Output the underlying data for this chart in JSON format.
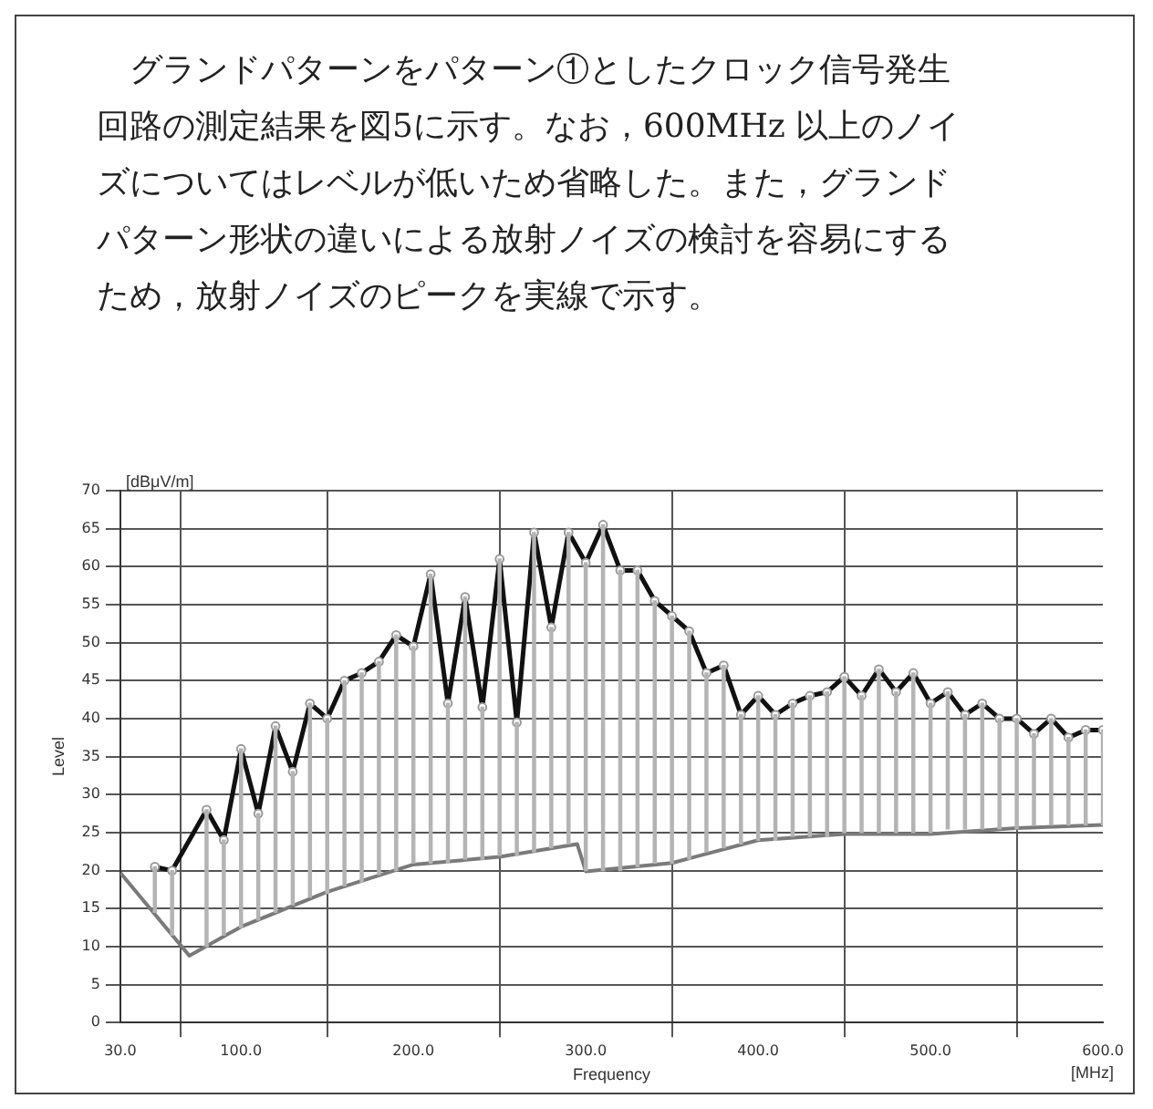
{
  "chart_data": {
    "type": "line",
    "xlabel": "Frequency",
    "ylabel": "Level",
    "annotations": [
      "グランドパターンをパターン①としたクロック信号発生回路の測定結果を図5に示す。なお，600MHz 以上のノイズについてはレベルが低いため省略した。また，グランドパターン形状の違いによる放射ノイズの検討を容易にするため，放射ノイズのピークを実線で示す。",
      "[dBμV/m]",
      "[MHz]"
    ],
    "xlim": [
      30,
      600
    ],
    "xticks": [
      {
        "value": 30,
        "label": "30.0"
      },
      {
        "value": 100,
        "label": "100.0"
      },
      {
        "value": 200,
        "label": "200.0"
      },
      {
        "value": 300,
        "label": "300.0"
      },
      {
        "value": 400,
        "label": "400.0"
      },
      {
        "value": 500,
        "label": "500.0"
      },
      {
        "value": 600,
        "label": "600.0"
      }
    ],
    "ylim": [
      0,
      70
    ],
    "yticks": [
      0,
      5,
      10,
      15,
      20,
      25,
      30,
      35,
      40,
      45,
      50,
      55,
      60,
      65,
      70
    ],
    "grid": true,
    "series": [
      {
        "type": "bar",
        "color": "#b4b4b4",
        "x": [
          50,
          60,
          80,
          90,
          100,
          110,
          120,
          130,
          140,
          150,
          160,
          170,
          180,
          190,
          200,
          210,
          220,
          230,
          240,
          250,
          260,
          270,
          280,
          290,
          300,
          310,
          320,
          330,
          340,
          350,
          360,
          370,
          380,
          390,
          400,
          410,
          420,
          430,
          440,
          450,
          460,
          470,
          480,
          490,
          500,
          510,
          520,
          530,
          540,
          550,
          560,
          570,
          580,
          590,
          600
        ],
        "base": [
          14.5,
          11.5,
          10,
          11.5,
          12.5,
          13.5,
          14.5,
          15.5,
          16.5,
          17,
          18,
          18.5,
          19.5,
          20,
          21,
          21,
          21,
          21.5,
          21.5,
          22,
          22,
          22.5,
          23,
          23.5,
          20,
          20,
          20,
          20.5,
          21,
          21,
          21.5,
          22.5,
          23,
          23.5,
          24,
          24,
          24.5,
          24.5,
          24.5,
          25,
          25,
          25,
          25,
          25,
          25,
          25.5,
          25.5,
          25.5,
          25.5,
          25.5,
          26,
          26,
          26,
          26,
          26
        ],
        "values": [
          6,
          8.5,
          18,
          12.5,
          23.5,
          14,
          24.5,
          17.5,
          25.5,
          23,
          27,
          27.5,
          28,
          31,
          28.5,
          38,
          21,
          34.5,
          20,
          39,
          17.5,
          42,
          29,
          41,
          40.5,
          45.5,
          39.5,
          39,
          34.5,
          32.5,
          30,
          23.5,
          24,
          17,
          19,
          16.5,
          17.5,
          18.5,
          19,
          20.5,
          18,
          21.5,
          18.5,
          21,
          17,
          18,
          15,
          16.5,
          14.5,
          14.5,
          12,
          14,
          11.5,
          12.5,
          12.5
        ]
      },
      {
        "color": "#7a7a7a",
        "marker": "none",
        "x": [
          30,
          70,
          100,
          150,
          200,
          250,
          295,
          300,
          350,
          400,
          450,
          500,
          550,
          600
        ],
        "values": [
          19.7,
          8.8,
          12.6,
          17.2,
          20.8,
          21.8,
          23.5,
          19.9,
          21,
          24,
          24.8,
          24.8,
          25.6,
          26
        ]
      },
      {
        "color": "#111111",
        "marker": "circle",
        "x": [
          50,
          60,
          80,
          90,
          100,
          110,
          120,
          130,
          140,
          150,
          160,
          170,
          180,
          190,
          200,
          210,
          220,
          230,
          240,
          250,
          260,
          270,
          280,
          290,
          300,
          310,
          320,
          330,
          340,
          350,
          360,
          370,
          380,
          390,
          400,
          410,
          420,
          430,
          440,
          450,
          460,
          470,
          480,
          490,
          500,
          510,
          520,
          530,
          540,
          550,
          560,
          570,
          580,
          590,
          600
        ],
        "values": [
          20.5,
          20,
          28,
          24,
          36,
          27.5,
          39,
          33,
          42,
          40,
          45,
          46,
          47.5,
          51,
          49.5,
          59,
          42,
          56,
          41.5,
          61,
          39.5,
          64.5,
          52,
          64.5,
          60.5,
          65.5,
          59.5,
          59.5,
          55.5,
          53.5,
          51.5,
          46,
          47,
          40.5,
          43,
          40.5,
          42,
          43,
          43.5,
          45.5,
          43,
          46.5,
          43.5,
          46,
          42,
          43.5,
          40.5,
          42,
          40,
          40,
          38,
          40,
          37.5,
          38.5,
          38.5
        ]
      }
    ]
  }
}
